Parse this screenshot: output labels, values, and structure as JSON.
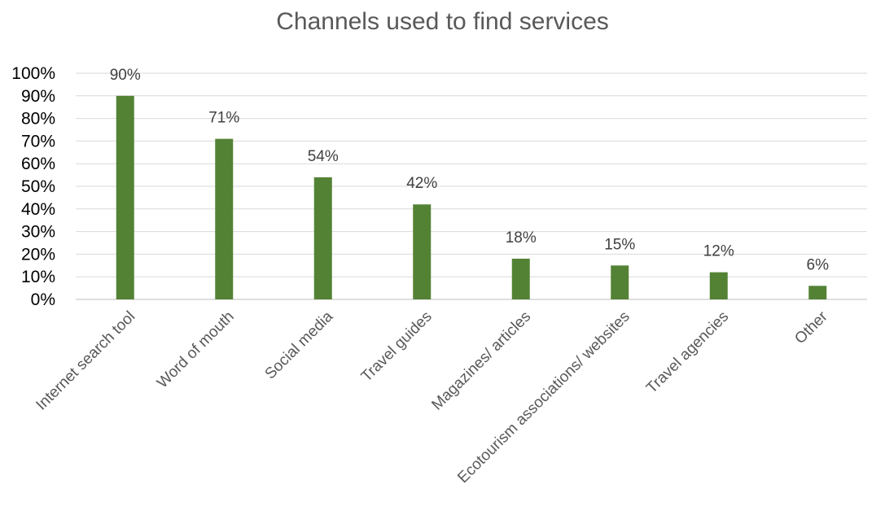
{
  "chart_data": {
    "type": "bar",
    "title": "Channels used to find services",
    "categories": [
      "Internet search tool",
      "Word of mouth",
      "Social media",
      "Travel guides",
      "Magazines/ articles",
      "Ecotourism associations/ websites",
      "Travel agencies",
      "Other"
    ],
    "values": [
      90,
      71,
      54,
      42,
      18,
      15,
      12,
      6
    ],
    "data_labels": [
      "90%",
      "71%",
      "54%",
      "42%",
      "18%",
      "15%",
      "12%",
      "6%"
    ],
    "y_ticks": [
      "0%",
      "10%",
      "20%",
      "30%",
      "40%",
      "50%",
      "60%",
      "70%",
      "80%",
      "90%",
      "100%"
    ],
    "ylim": [
      0,
      100
    ],
    "grid": true,
    "legend": "none",
    "bar_color": "#548235"
  }
}
